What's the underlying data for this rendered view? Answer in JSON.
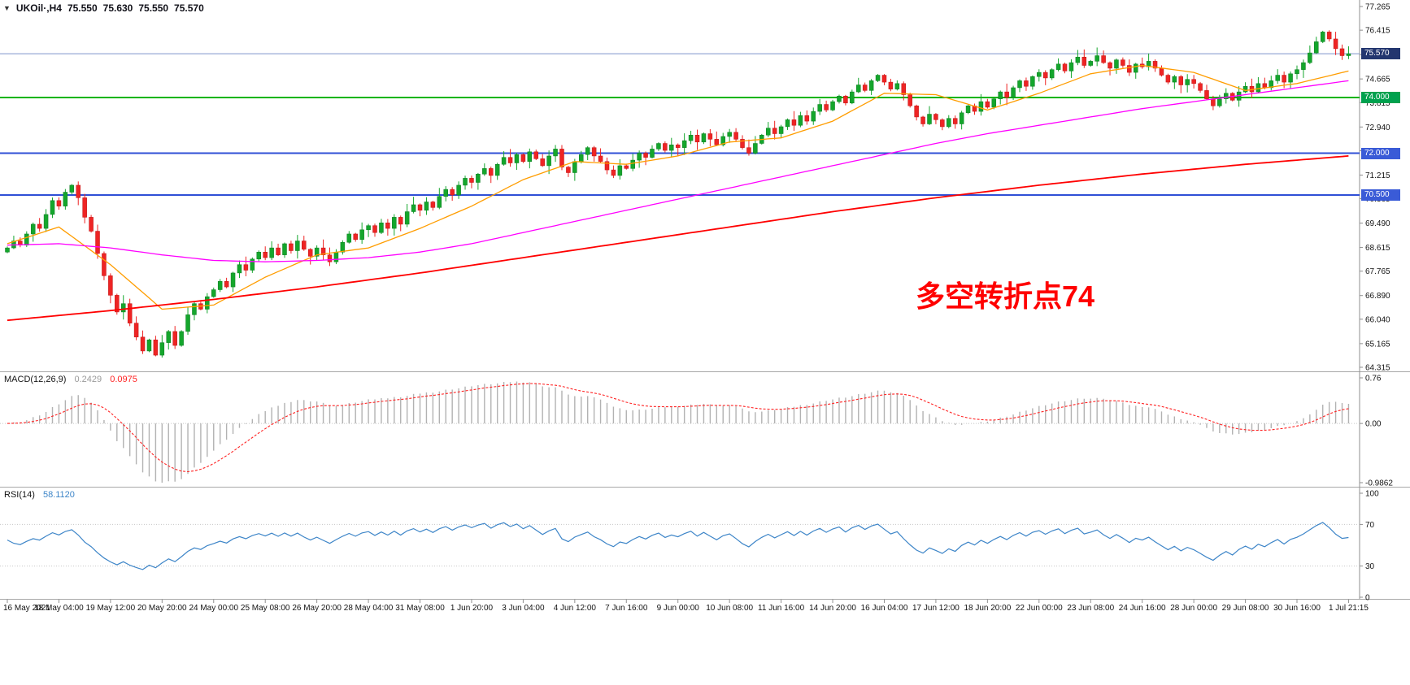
{
  "header": {
    "collapse_icon": "▼",
    "symbol_period": "UKOil·,H4",
    "open": "75.550",
    "high": "75.630",
    "low": "75.550",
    "close": "75.570"
  },
  "annotation": {
    "text": "多空转折点74",
    "color": "#ff0000"
  },
  "colors": {
    "up": "#14a62c",
    "up_stroke": "#0c7d20",
    "down": "#ee2424",
    "down_stroke": "#c01414",
    "ma_fast": "#ff9d00",
    "ma_mid": "#ff00ff",
    "ma_slow": "#ff0000",
    "macd_hist": "#b2b2b2",
    "macd_hist_label": "#9a9a9a",
    "macd_signal": "#ff2222",
    "rsi": "#3d85c8",
    "grid_dotted": "#c6c6c6",
    "axis_line": "#8f8f8f",
    "separator": "#a8a8a8",
    "axis_text": "#141414"
  },
  "price_axis": {
    "labels": [
      77.265,
      76.415,
      75.54,
      74.665,
      73.815,
      72.94,
      72.09,
      71.215,
      70.365,
      69.49,
      68.615,
      67.765,
      66.89,
      66.04,
      65.165,
      64.315
    ],
    "tags": [
      {
        "label": "75.570",
        "price": 75.57,
        "bg": "#23366f"
      },
      {
        "label": "74.000",
        "price": 74.0,
        "bg": "#00a14e"
      },
      {
        "label": "72.000",
        "price": 72.0,
        "bg": "#3a5bd7"
      },
      {
        "label": "70.500",
        "price": 70.5,
        "bg": "#3a5bd7"
      }
    ]
  },
  "hlines": [
    {
      "price": 75.57,
      "color": "#7d95cc",
      "width": 1
    },
    {
      "price": 74.0,
      "color": "#00b400",
      "width": 2
    },
    {
      "price": 72.0,
      "color": "#2f4fd6",
      "width": 2
    },
    {
      "price": 70.5,
      "color": "#2f4fd6",
      "width": 2
    }
  ],
  "panels": {
    "macd": {
      "title": "MACD(12,26,9)",
      "main_value": "0.2429",
      "signal_value": "0.0975",
      "axis": [
        {
          "label": "0.76",
          "v": 0.76
        },
        {
          "label": "0.00",
          "v": 0
        },
        {
          "label": "-0.9862",
          "v": -0.9862
        }
      ]
    },
    "rsi": {
      "title": "RSI(14)",
      "value": "58.1120",
      "levels": [
        70,
        30
      ],
      "axis": [
        {
          "label": "100",
          "v": 100
        },
        {
          "label": "70",
          "v": 70
        },
        {
          "label": "30",
          "v": 30
        },
        {
          "label": "0",
          "v": 0
        }
      ]
    }
  },
  "chart_data": {
    "type": "candlestick",
    "symbol": "UKOil",
    "timeframe": "H4",
    "ylim": [
      64.315,
      77.265
    ],
    "current_price": 75.57,
    "last_bar": {
      "open": 75.55,
      "high": 75.63,
      "low": 75.55,
      "close": 75.57
    },
    "levels": [
      74.0,
      72.0,
      70.5
    ],
    "candles_per_label": 8,
    "x_labels": [
      "16 May 2021",
      "18 May 04:00",
      "19 May 12:00",
      "20 May 20:00",
      "24 May 00:00",
      "25 May 08:00",
      "26 May 20:00",
      "28 May 04:00",
      "31 May 08:00",
      "1 Jun 20:00",
      "3 Jun 04:00",
      "4 Jun 12:00",
      "7 Jun 16:00",
      "9 Jun 00:00",
      "10 Jun 08:00",
      "11 Jun 16:00",
      "14 Jun 20:00",
      "16 Jun 04:00",
      "17 Jun 12:00",
      "18 Jun 20:00",
      "22 Jun 00:00",
      "23 Jun 08:00",
      "24 Jun 16:00",
      "28 Jun 00:00",
      "29 Jun 08:00",
      "30 Jun 16:00",
      "1 Jul 21:15"
    ],
    "first_open": 68.45,
    "closes": [
      68.6,
      68.85,
      68.7,
      69.1,
      69.45,
      69.3,
      69.8,
      70.3,
      70.1,
      70.6,
      70.85,
      70.4,
      69.7,
      69.2,
      68.4,
      67.6,
      66.9,
      66.3,
      66.6,
      65.9,
      65.4,
      64.9,
      65.3,
      64.75,
      65.2,
      65.6,
      65.1,
      65.6,
      66.2,
      66.6,
      66.4,
      66.85,
      67.1,
      67.4,
      67.2,
      67.7,
      68.0,
      67.8,
      68.2,
      68.45,
      68.25,
      68.6,
      68.35,
      68.75,
      68.5,
      68.85,
      68.55,
      68.3,
      68.6,
      68.35,
      68.1,
      68.45,
      68.8,
      69.1,
      68.9,
      69.25,
      69.4,
      69.15,
      69.5,
      69.3,
      69.7,
      69.45,
      69.9,
      70.15,
      69.95,
      70.25,
      70.05,
      70.45,
      70.7,
      70.5,
      70.85,
      71.1,
      70.95,
      71.25,
      71.45,
      71.2,
      71.6,
      71.85,
      71.65,
      71.95,
      71.7,
      72.05,
      71.8,
      71.55,
      71.9,
      72.15,
      71.5,
      71.3,
      71.7,
      71.95,
      72.2,
      71.9,
      71.7,
      71.4,
      71.2,
      71.55,
      71.45,
      71.75,
      72.0,
      71.85,
      72.15,
      72.35,
      72.1,
      72.3,
      72.2,
      72.45,
      72.65,
      72.4,
      72.7,
      72.5,
      72.3,
      72.6,
      72.75,
      72.5,
      72.2,
      72.0,
      72.35,
      72.65,
      72.9,
      72.7,
      72.95,
      73.2,
      73.0,
      73.35,
      73.15,
      73.5,
      73.75,
      73.55,
      73.85,
      74.05,
      73.8,
      74.2,
      74.45,
      74.25,
      74.6,
      74.8,
      74.55,
      74.3,
      74.5,
      74.1,
      73.7,
      73.3,
      73.05,
      73.4,
      73.2,
      72.95,
      73.25,
      73.05,
      73.45,
      73.7,
      73.5,
      73.85,
      73.65,
      73.95,
      74.2,
      74.0,
      74.35,
      74.6,
      74.4,
      74.75,
      74.9,
      74.7,
      75.0,
      75.2,
      74.95,
      75.25,
      75.45,
      75.15,
      75.3,
      75.5,
      75.25,
      75.05,
      75.35,
      75.15,
      74.9,
      75.2,
      75.1,
      75.3,
      75.05,
      74.8,
      74.55,
      74.75,
      74.45,
      74.65,
      74.5,
      74.25,
      73.95,
      73.7,
      73.95,
      74.15,
      73.9,
      74.2,
      74.4,
      74.2,
      74.5,
      74.35,
      74.6,
      74.8,
      74.55,
      74.85,
      75.0,
      75.25,
      75.6,
      76.0,
      76.35,
      76.1,
      75.75,
      75.5,
      75.57
    ],
    "moving_averages": [
      {
        "name": "ma-fast-orange",
        "anchor_step": 8,
        "values": [
          68.75,
          69.35,
          68.0,
          66.4,
          66.55,
          67.55,
          68.35,
          68.6,
          69.3,
          70.1,
          71.05,
          71.7,
          71.6,
          71.9,
          72.4,
          72.55,
          73.15,
          74.15,
          74.1,
          73.55,
          74.15,
          74.85,
          75.15,
          74.9,
          74.25,
          74.5,
          74.95
        ]
      },
      {
        "name": "ma-mid-magenta",
        "anchor_step": 8,
        "values": [
          68.7,
          68.75,
          68.6,
          68.35,
          68.15,
          68.1,
          68.15,
          68.25,
          68.45,
          68.75,
          69.15,
          69.55,
          69.95,
          70.35,
          70.75,
          71.15,
          71.55,
          71.95,
          72.35,
          72.7,
          73.0,
          73.3,
          73.6,
          73.85,
          74.1,
          74.35,
          74.6
        ]
      },
      {
        "name": "ma-slow-red",
        "anchor_step": 16,
        "values": [
          66.0,
          66.35,
          66.75,
          67.2,
          67.7,
          68.25,
          68.8,
          69.35,
          69.9,
          70.4,
          70.85,
          71.25,
          71.6,
          71.9
        ]
      }
    ],
    "indicators": [
      {
        "name": "MACD",
        "params": "12,26,9",
        "main": 0.2429,
        "signal": 0.0975,
        "scale_max": 0.76,
        "scale_min": -0.9862
      },
      {
        "name": "RSI",
        "params": "14",
        "value": 58.112,
        "scale": [
          0,
          100
        ],
        "levels": [
          30,
          70
        ]
      }
    ]
  }
}
